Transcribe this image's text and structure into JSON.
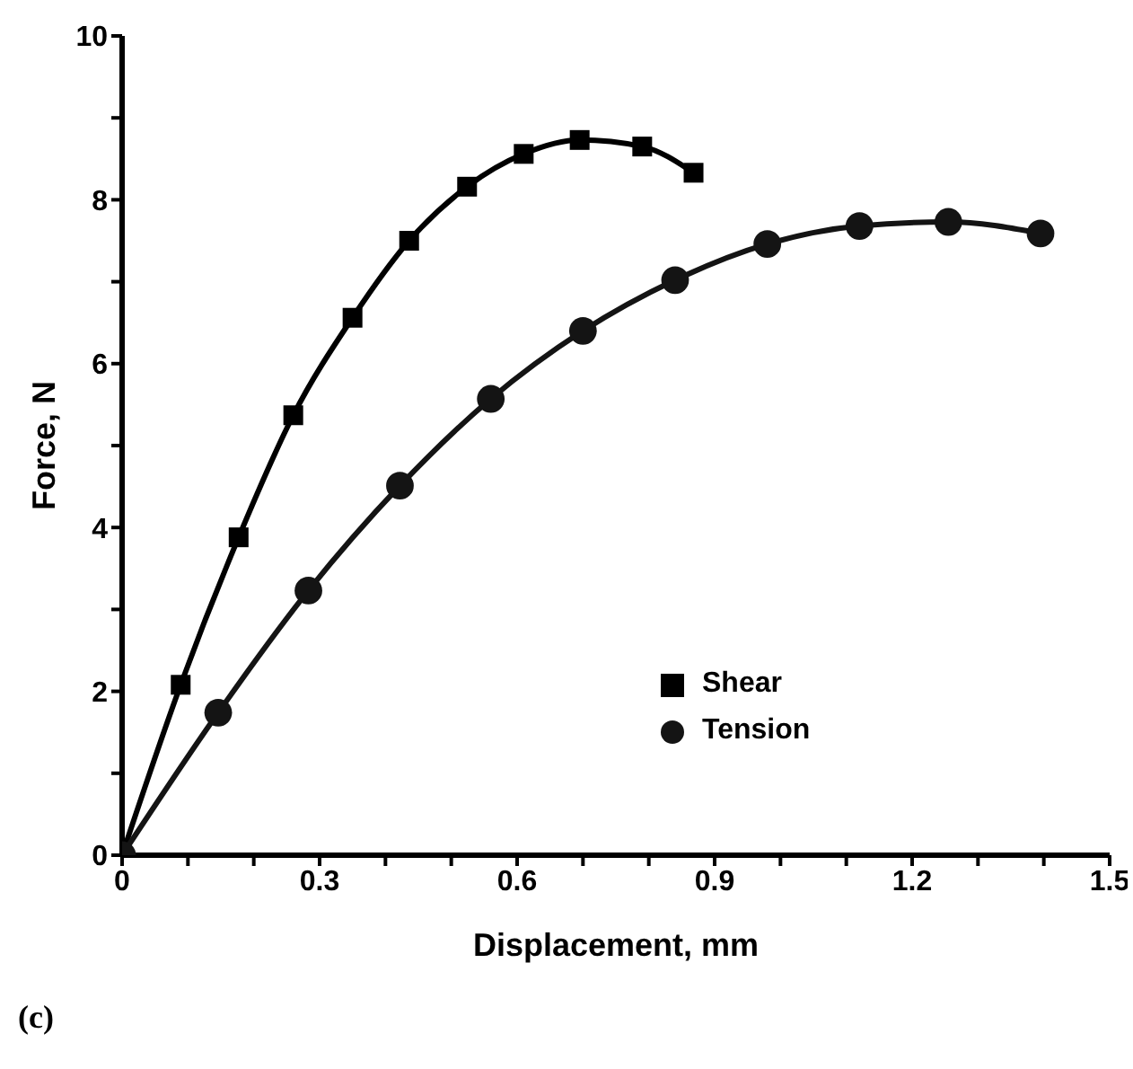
{
  "chart_data": {
    "type": "line",
    "xlabel": "Displacement, mm",
    "ylabel": "Force, N",
    "annotations": [
      "(c)"
    ],
    "xlim": [
      0,
      1.5
    ],
    "ylim": [
      0,
      10
    ],
    "xticks": [
      0,
      {
        "value": 0.1,
        "label": null
      },
      {
        "value": 0.2,
        "label": null
      },
      0.3,
      {
        "value": 0.4,
        "label": null
      },
      {
        "value": 0.5,
        "label": null
      },
      0.6,
      {
        "value": 0.7,
        "label": null
      },
      {
        "value": 0.8,
        "label": null
      },
      0.9,
      {
        "value": 1.0,
        "label": null
      },
      {
        "value": 1.1,
        "label": null
      },
      1.2,
      {
        "value": 1.3,
        "label": null
      },
      {
        "value": 1.4,
        "label": null
      },
      1.5
    ],
    "yticks": [
      0,
      {
        "value": 1,
        "label": null
      },
      2,
      {
        "value": 3,
        "label": null
      },
      4,
      {
        "value": 5,
        "label": null
      },
      6,
      {
        "value": 7,
        "label": null
      },
      8,
      {
        "value": 9,
        "label": null
      },
      10
    ],
    "grid": false,
    "legend": "bottom right",
    "line_style": "solid",
    "series": [
      {
        "name": "Shear",
        "color": "#000000",
        "marker": "square",
        "x": [
          0,
          0.089,
          0.177,
          0.26,
          0.35,
          0.436,
          0.524,
          0.61,
          0.695,
          0.79,
          0.868
        ],
        "values": [
          0,
          2.08,
          3.88,
          5.37,
          6.56,
          7.5,
          8.16,
          8.56,
          8.73,
          8.65,
          8.33
        ]
      },
      {
        "name": "Tension",
        "color": "#141414",
        "marker": "circle",
        "x": [
          0,
          0.146,
          0.283,
          0.422,
          0.56,
          0.7,
          0.84,
          0.98,
          1.12,
          1.255,
          1.395
        ],
        "values": [
          0,
          1.74,
          3.23,
          4.51,
          5.57,
          6.4,
          7.02,
          7.46,
          7.68,
          7.73,
          7.59
        ]
      }
    ]
  }
}
